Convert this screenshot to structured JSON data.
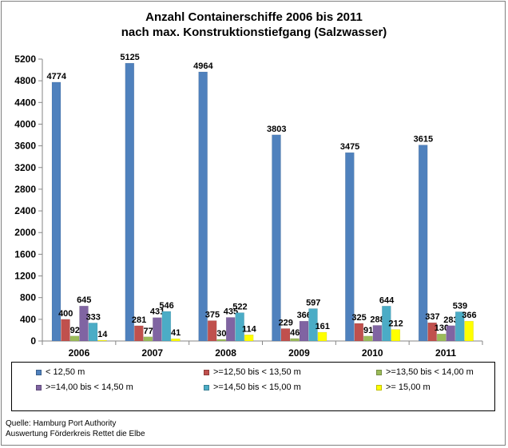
{
  "chart_data": {
    "type": "bar",
    "title": "Anzahl Containerschiffe 2006 bis 2011",
    "subtitle": "nach max. Konstruktionstiefgang (Salzwasser)",
    "categories": [
      "2006",
      "2007",
      "2008",
      "2009",
      "2010",
      "2011"
    ],
    "series": [
      {
        "name": "< 12,50 m",
        "color": "#4f81bd",
        "values": [
          4774,
          5125,
          4964,
          3803,
          3475,
          3615
        ]
      },
      {
        "name": ">=12,50 bis < 13,50 m",
        "color": "#c0504d",
        "values": [
          400,
          281,
          375,
          229,
          325,
          337
        ]
      },
      {
        "name": ">=13,50 bis < 14,00 m",
        "color": "#9bbb59",
        "values": [
          92,
          77,
          30,
          46,
          91,
          130
        ]
      },
      {
        "name": ">=14,00 bis < 14,50 m",
        "color": "#8064a2",
        "values": [
          645,
          431,
          435,
          366,
          288,
          283
        ]
      },
      {
        "name": ">=14,50 bis < 15,00 m",
        "color": "#4bacc6",
        "values": [
          333,
          546,
          522,
          597,
          644,
          539
        ]
      },
      {
        "name": ">= 15,00 m",
        "color": "#ffff00",
        "values": [
          14,
          41,
          114,
          161,
          212,
          366
        ]
      }
    ],
    "ylim": [
      0,
      5200
    ],
    "yticks": [
      0,
      400,
      800,
      1200,
      1600,
      2000,
      2400,
      2800,
      3200,
      3600,
      4000,
      4400,
      4800,
      5200
    ],
    "xlabel": "",
    "ylabel": "",
    "grid": false,
    "legend_position": "bottom"
  },
  "source": {
    "line1": "Quelle: Hamburg Port Authority",
    "line2": "Auswertung Förderkreis Rettet die Elbe"
  }
}
